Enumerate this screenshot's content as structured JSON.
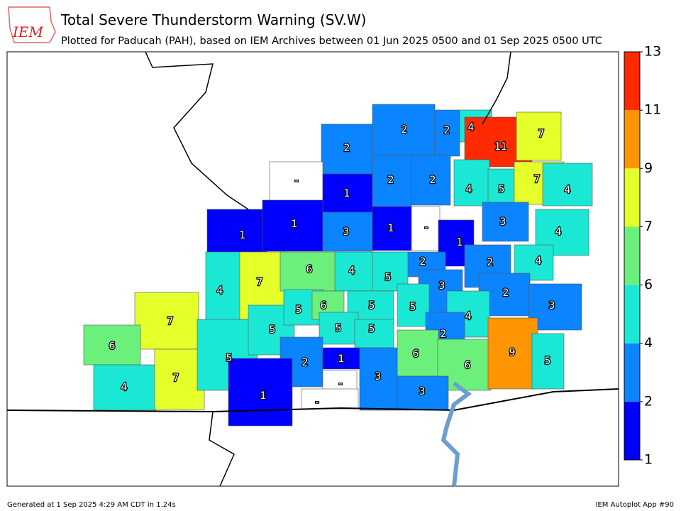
{
  "header": {
    "logo": "IEM",
    "title": "Total Severe Thunderstorm Warning (SV.W)",
    "subtitle": "Plotted for Paducah (PAH), based on IEM Archives  between 01 Jun 2025 0500 and 01 Sep 2025 0500 UTC"
  },
  "colorbar": {
    "ticks": [
      1,
      2,
      4,
      6,
      7,
      9,
      11,
      13
    ],
    "colors": [
      "#0000ff",
      "#0a84ff",
      "#1be8d4",
      "#6cf07c",
      "#e5ff2a",
      "#ff9500",
      "#ff2a00"
    ]
  },
  "counties": [
    {
      "value": 2
    },
    {
      "value": 2
    },
    {
      "value": 2
    },
    {
      "value": 4
    },
    {
      "value": 11
    },
    {
      "value": 7
    },
    {
      "value": "-"
    },
    {
      "value": 1
    },
    {
      "value": 2
    },
    {
      "value": 2
    },
    {
      "value": 4
    },
    {
      "value": 5
    },
    {
      "value": 7
    },
    {
      "value": 4
    },
    {
      "value": 1
    },
    {
      "value": 1
    },
    {
      "value": 3
    },
    {
      "value": 1
    },
    {
      "value": "-"
    },
    {
      "value": 1
    },
    {
      "value": 3
    },
    {
      "value": 4
    },
    {
      "value": 2
    },
    {
      "value": 2
    },
    {
      "value": 4
    },
    {
      "value": 4
    },
    {
      "value": 7
    },
    {
      "value": 6
    },
    {
      "value": 4
    },
    {
      "value": 5
    },
    {
      "value": 3
    },
    {
      "value": 2
    },
    {
      "value": 3
    },
    {
      "value": 7
    },
    {
      "value": 6
    },
    {
      "value": 4
    },
    {
      "value": 7
    },
    {
      "value": 5
    },
    {
      "value": 5
    },
    {
      "value": 5
    },
    {
      "value": 6
    },
    {
      "value": 5
    },
    {
      "value": 5
    },
    {
      "value": 4
    },
    {
      "value": 5
    },
    {
      "value": 5
    },
    {
      "value": 2
    },
    {
      "value": 6
    },
    {
      "value": 6
    },
    {
      "value": 9
    },
    {
      "value": 5
    },
    {
      "value": 2
    },
    {
      "value": 1
    },
    {
      "value": 1
    },
    {
      "value": 3
    },
    {
      "value": 3
    },
    {
      "value": "-"
    },
    {
      "value": "-"
    }
  ],
  "footer": {
    "left": "Generated at 1 Sep 2025 4:29 AM CDT in 1.24s",
    "right": "IEM Autoplot App #90"
  }
}
